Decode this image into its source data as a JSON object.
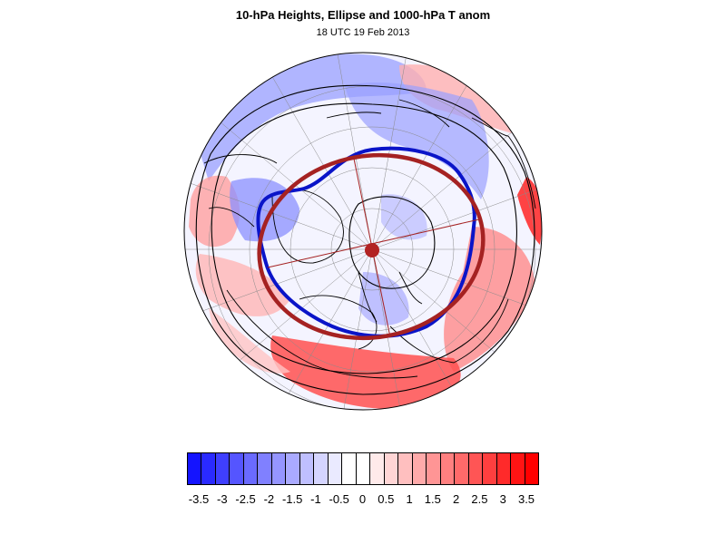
{
  "header": {
    "title": "10-hPa Heights, Ellipse and 1000-hPa T anom",
    "subtitle": "18 UTC 19 Feb 2013"
  },
  "map": {
    "projection": "polar stereographic (north pole)",
    "ocean_color": "#f4f4ff",
    "land_outline_color": "#000000",
    "height_contour_color": "#000000",
    "polar_vortex_edge_color": "#0a14c8",
    "ellipse_color": "#a52222",
    "ellipse_center_color": "#b22222"
  },
  "colorbar": {
    "colors": [
      "#1414ff",
      "#2a2aff",
      "#3f3fff",
      "#5555ff",
      "#6a6aff",
      "#8080ff",
      "#9595ff",
      "#aaaaff",
      "#bfbfff",
      "#d5d5ff",
      "#eaeaff",
      "#ffffff",
      "#ffffff",
      "#ffeaea",
      "#ffd5d5",
      "#ffbfbf",
      "#ffaaaa",
      "#ff9595",
      "#ff8080",
      "#ff6a6a",
      "#ff5555",
      "#ff3f3f",
      "#ff2a2a",
      "#ff1414",
      "#ff0000"
    ],
    "tick_labels": [
      "-3.5",
      "-3",
      "-2.5",
      "-2",
      "-1.5",
      "-1",
      "-0.5",
      "0",
      "0.5",
      "1",
      "1.5",
      "2",
      "2.5",
      "3",
      "3.5"
    ]
  }
}
